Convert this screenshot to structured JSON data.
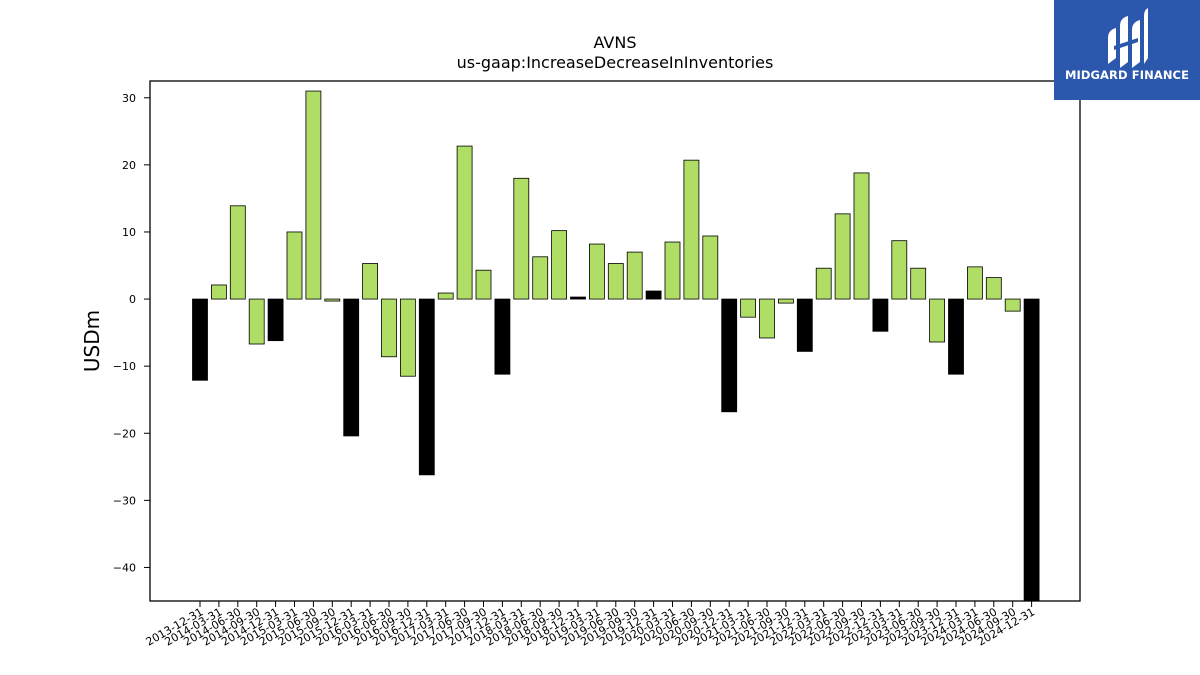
{
  "chart_data": {
    "type": "bar",
    "title": "AVNS",
    "subtitle": "us-gaap:IncreaseDecreaseInInventories",
    "xlabel": "",
    "ylabel": "USDm",
    "ylim": [
      -45,
      32.5
    ],
    "yticks": [
      30,
      20,
      10,
      0,
      -10,
      -20,
      -30,
      -40
    ],
    "ytick_labels": [
      "30",
      "20",
      "10",
      "0",
      "−10",
      "−20",
      "−30",
      "−40"
    ],
    "grid": false,
    "colors": {
      "default": "#b0dd66",
      "quarter_end": "#000000",
      "edge": "#000000"
    },
    "categories": [
      "2013-12-31",
      "2014-03-31",
      "2014-06-30",
      "2014-09-30",
      "2014-12-31",
      "2015-03-31",
      "2015-06-30",
      "2015-09-30",
      "2015-12-31",
      "2016-03-31",
      "2016-06-30",
      "2016-09-30",
      "2016-12-31",
      "2017-03-31",
      "2017-06-30",
      "2017-09-30",
      "2017-12-31",
      "2018-03-31",
      "2018-06-30",
      "2018-09-30",
      "2018-12-31",
      "2019-03-31",
      "2019-06-30",
      "2019-09-30",
      "2019-12-31",
      "2020-03-31",
      "2020-06-30",
      "2020-09-30",
      "2020-12-31",
      "2021-03-31",
      "2021-06-30",
      "2021-09-30",
      "2021-12-31",
      "2022-03-31",
      "2022-06-30",
      "2022-09-30",
      "2022-12-31",
      "2023-03-31",
      "2023-06-30",
      "2023-09-30",
      "2023-12-31",
      "2024-03-31",
      "2024-06-30",
      "2024-09-30",
      "2024-12-31"
    ],
    "values": [
      -12.1,
      2.1,
      13.9,
      -6.7,
      -6.2,
      10.0,
      31.0,
      -0.3,
      -20.4,
      5.3,
      -8.6,
      -11.5,
      -26.2,
      0.9,
      22.8,
      4.3,
      -11.2,
      18.0,
      6.3,
      10.2,
      0.3,
      8.2,
      5.3,
      7.0,
      1.2,
      8.5,
      20.7,
      9.4,
      -16.8,
      -2.7,
      -5.8,
      -0.6,
      -7.8,
      4.6,
      12.7,
      18.8,
      -4.8,
      8.7,
      4.6,
      -6.4,
      -11.2,
      4.8,
      3.2,
      -1.8,
      -45.0
    ]
  },
  "logo": {
    "text": "MIDGARD FINANCE",
    "icon": "midgard-logo-icon"
  }
}
